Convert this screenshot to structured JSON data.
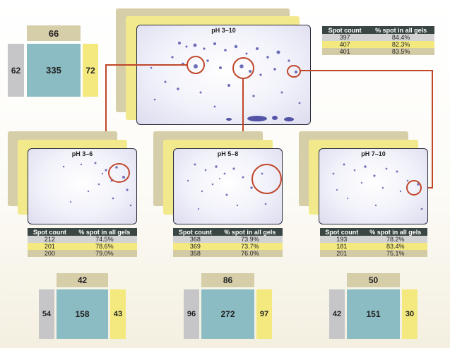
{
  "colors": {
    "gray": "#c6c6c9",
    "tan": "#d6cda9",
    "yellow": "#f3e97f",
    "teal": "#8bbcc3",
    "header": "#3a4644",
    "highlight": "#c0462a",
    "spot": "#4a4aa8"
  },
  "table_headers": {
    "col1": "Spot count",
    "col2": "% spot in all gels"
  },
  "top": {
    "title": "pH 3–10",
    "table": [
      [
        "397",
        "84.4%"
      ],
      [
        "407",
        "82.3%"
      ],
      [
        "401",
        "83.5%"
      ]
    ],
    "venn": {
      "top": "66",
      "left": "62",
      "center": "335",
      "right": "72"
    }
  },
  "panels": [
    {
      "title": "pH 3–6",
      "table": [
        [
          "212",
          "74.5%"
        ],
        [
          "201",
          "78.6%"
        ],
        [
          "200",
          "79.0%"
        ]
      ],
      "venn": {
        "top": "42",
        "left": "54",
        "center": "158",
        "right": "43"
      }
    },
    {
      "title": "pH 5–8",
      "table": [
        [
          "368",
          "73.9%"
        ],
        [
          "369",
          "73.7%"
        ],
        [
          "358",
          "76.0%"
        ]
      ],
      "venn": {
        "top": "86",
        "left": "96",
        "center": "272",
        "right": "97"
      }
    },
    {
      "title": "pH 7–10",
      "table": [
        [
          "193",
          "78.2%"
        ],
        [
          "181",
          "83.4%"
        ],
        [
          "201",
          "75.1%"
        ]
      ],
      "venn": {
        "top": "50",
        "left": "42",
        "center": "151",
        "right": "30"
      }
    }
  ]
}
